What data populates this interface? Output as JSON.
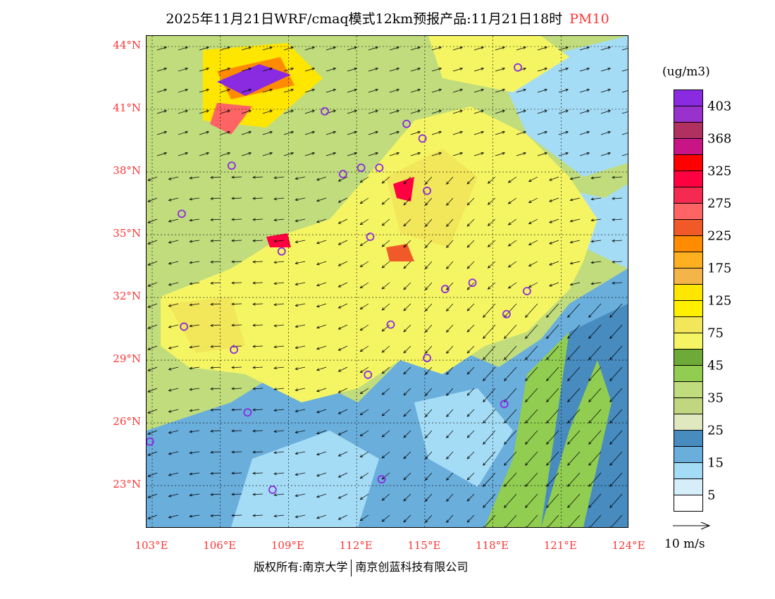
{
  "title": {
    "main": "2025年11月21日WRF/cmaq模式12km预报产品:11月21日18时",
    "pollutant": "PM10"
  },
  "lat_labels": [
    {
      "lat": 44,
      "label": "44°N"
    },
    {
      "lat": 41,
      "label": "41°N"
    },
    {
      "lat": 38,
      "label": "38°N"
    },
    {
      "lat": 35,
      "label": "35°N"
    },
    {
      "lat": 32,
      "label": "32°N"
    },
    {
      "lat": 29,
      "label": "29°N"
    },
    {
      "lat": 26,
      "label": "26°N"
    },
    {
      "lat": 23,
      "label": "23°N"
    }
  ],
  "lon_labels": [
    {
      "lon": 103,
      "label": "103°E"
    },
    {
      "lon": 106,
      "label": "106°E"
    },
    {
      "lon": 109,
      "label": "109°E"
    },
    {
      "lon": 112,
      "label": "112°E"
    },
    {
      "lon": 115,
      "label": "115°E"
    },
    {
      "lon": 118,
      "label": "118°E"
    },
    {
      "lon": 121,
      "label": "121°E"
    },
    {
      "lon": 124,
      "label": "124°E"
    }
  ],
  "legend": {
    "unit": "(ug/m3)",
    "colors": [
      "#8a2be2",
      "#9932cc",
      "#b03060",
      "#c71585",
      "#ff0000",
      "#ff0040",
      "#f52a50",
      "#ff6464",
      "#f05a28",
      "#ff8c00",
      "#ffb020",
      "#f5b44a",
      "#ffe600",
      "#fff000",
      "#f2e65a",
      "#f5f564",
      "#6eaa37",
      "#91cd50",
      "#c0dc7d",
      "#c0d780",
      "#dfe8bf",
      "#478bbf",
      "#6aaedc",
      "#a5dcf5",
      "#d6eefa",
      "#ffffff"
    ],
    "labels": [
      "403",
      "368",
      "325",
      "275",
      "225",
      "175",
      "125",
      "75",
      "45",
      "35",
      "25",
      "15",
      "5"
    ]
  },
  "wind_reference": "10 m/s",
  "footer": {
    "left": "版权所有:南京大学",
    "right": "南京创蓝科技有限公司"
  },
  "cities": [
    [
      119.1,
      43.0
    ],
    [
      110.6,
      40.9
    ],
    [
      114.2,
      40.3
    ],
    [
      114.9,
      39.6
    ],
    [
      106.5,
      38.3
    ],
    [
      111.4,
      37.9
    ],
    [
      112.2,
      38.2
    ],
    [
      113.0,
      38.2
    ],
    [
      115.1,
      37.1
    ],
    [
      104.3,
      36.0
    ],
    [
      112.6,
      34.9
    ],
    [
      108.7,
      34.2
    ],
    [
      115.9,
      32.4
    ],
    [
      117.1,
      32.7
    ],
    [
      119.5,
      32.3
    ],
    [
      118.6,
      31.2
    ],
    [
      113.5,
      30.7
    ],
    [
      104.4,
      30.6
    ],
    [
      106.6,
      29.5
    ],
    [
      115.1,
      29.1
    ],
    [
      112.5,
      28.3
    ],
    [
      107.2,
      26.5
    ],
    [
      118.5,
      26.9
    ],
    [
      102.9,
      25.1
    ],
    [
      108.3,
      22.8
    ],
    [
      113.1,
      23.3
    ]
  ]
}
